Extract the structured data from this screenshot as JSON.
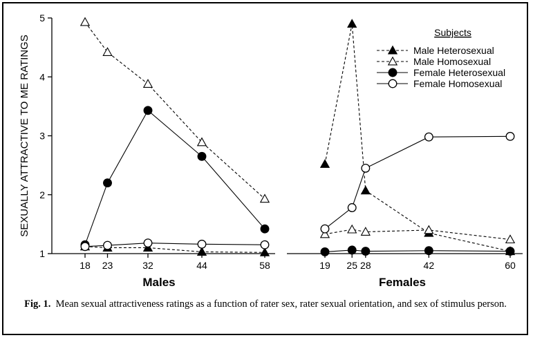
{
  "chart_data": {
    "type": "line",
    "ylabel": "SEXUALLY ATTRACTIVE TO ME RATINGS",
    "ylim": [
      1,
      5
    ],
    "yticks": [
      1,
      2,
      3,
      4,
      5
    ],
    "legend": {
      "title": "Subjects",
      "placement": "top-right",
      "entries": [
        "Male Heterosexual",
        "Male Homosexual",
        "Female Heterosexual",
        "Female Homosexual"
      ]
    },
    "panels": [
      {
        "xlabel": "Males",
        "xticks": [
          18,
          23,
          32,
          44,
          58
        ],
        "series": [
          {
            "name": "Male Heterosexual",
            "marker": "filled-triangle",
            "line": "dashed",
            "x": [
              18,
              23,
              32,
              44,
              58
            ],
            "y": [
              1.12,
              1.1,
              1.1,
              1.03,
              1.02
            ]
          },
          {
            "name": "Male Homosexual",
            "marker": "open-triangle",
            "line": "dashed",
            "x": [
              18,
              23,
              32,
              44,
              58
            ],
            "y": [
              4.93,
              4.42,
              3.88,
              2.89,
              1.93
            ]
          },
          {
            "name": "Female Heterosexual",
            "marker": "filled-circle",
            "line": "solid",
            "x": [
              18,
              23,
              32,
              44,
              58
            ],
            "y": [
              1.15,
              2.2,
              3.43,
              2.65,
              1.42
            ]
          },
          {
            "name": "Female Homosexual",
            "marker": "open-circle",
            "line": "solid",
            "x": [
              18,
              23,
              32,
              44,
              58
            ],
            "y": [
              1.12,
              1.14,
              1.18,
              1.16,
              1.15
            ]
          }
        ]
      },
      {
        "xlabel": "Females",
        "xticks": [
          19,
          25,
          28,
          42,
          60
        ],
        "series": [
          {
            "name": "Male Heterosexual",
            "marker": "filled-triangle",
            "line": "dashed",
            "x": [
              19,
              25,
              28,
              42,
              60
            ],
            "y": [
              2.52,
              4.9,
              2.07,
              1.35,
              1.04
            ]
          },
          {
            "name": "Male Homosexual",
            "marker": "open-triangle",
            "line": "dashed",
            "x": [
              19,
              25,
              28,
              42,
              60
            ],
            "y": [
              1.33,
              1.41,
              1.37,
              1.4,
              1.24
            ]
          },
          {
            "name": "Female Heterosexual",
            "marker": "filled-circle",
            "line": "solid",
            "x": [
              19,
              25,
              28,
              42,
              60
            ],
            "y": [
              1.03,
              1.06,
              1.04,
              1.05,
              1.04
            ]
          },
          {
            "name": "Female Homosexual",
            "marker": "open-circle",
            "line": "solid",
            "x": [
              19,
              25,
              28,
              42,
              60
            ],
            "y": [
              1.42,
              1.78,
              2.45,
              2.98,
              2.99
            ]
          }
        ]
      }
    ]
  },
  "caption": {
    "label": "Fig. 1.",
    "text": "Mean sexual attractiveness ratings as a function of rater sex, rater sexual orientation, and sex of stimulus person."
  }
}
